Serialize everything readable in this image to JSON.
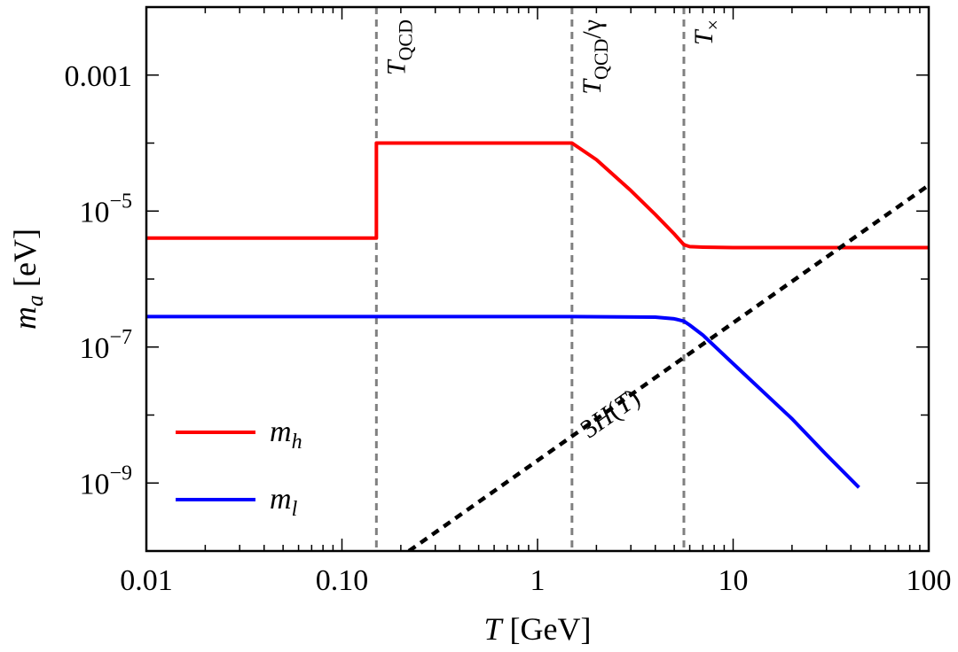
{
  "chart_data": {
    "type": "line",
    "xlabel": {
      "var": "T",
      "unit": " [GeV]"
    },
    "ylabel": {
      "var": "m",
      "sub": "a",
      "unit": " [eV]"
    },
    "x_scale": "log",
    "y_scale": "log",
    "xlim": [
      0.01,
      100
    ],
    "ylim": [
      1e-10,
      0.01
    ],
    "x_ticks": [
      {
        "value": 0.01,
        "label": "0.01"
      },
      {
        "value": 0.1,
        "label": "0.10"
      },
      {
        "value": 1,
        "label": "1"
      },
      {
        "value": 10,
        "label": "10"
      },
      {
        "value": 100,
        "label": "100"
      }
    ],
    "y_ticks": [
      {
        "value": 0.001,
        "base": "0.001",
        "exp": ""
      },
      {
        "value": 1e-05,
        "base": "10",
        "exp": "−5"
      },
      {
        "value": 1e-07,
        "base": "10",
        "exp": "−7"
      },
      {
        "value": 1e-09,
        "base": "10",
        "exp": "−9"
      }
    ],
    "grid": false,
    "legend_position": "bottom-left",
    "vlines": [
      {
        "x": 0.15,
        "label_main": "T",
        "label_sub": "QCD",
        "label_suffix": ""
      },
      {
        "x": 1.5,
        "label_main": "T",
        "label_sub": "QCD",
        "label_suffix": "/γ"
      },
      {
        "x": 5.6,
        "label_main": "T",
        "label_sub": "×",
        "label_suffix": ""
      }
    ],
    "series": [
      {
        "name": "m_h",
        "legend_main": "m",
        "legend_sub": "h",
        "color": "#ff0000",
        "style": "solid",
        "x": [
          0.01,
          0.15,
          0.15,
          1.5,
          2,
          3,
          4,
          5,
          5.6,
          6,
          7,
          10,
          30,
          100
        ],
        "y": [
          4e-06,
          4e-06,
          0.0001,
          0.0001,
          5.7e-05,
          2e-05,
          8.9e-06,
          4.6e-06,
          3.2e-06,
          3e-06,
          2.95e-06,
          2.9e-06,
          2.9e-06,
          2.9e-06
        ]
      },
      {
        "name": "m_l",
        "legend_main": "m",
        "legend_sub": "l",
        "color": "#0000ff",
        "style": "solid",
        "x": [
          0.01,
          0.15,
          1.5,
          4,
          5,
          5.6,
          6,
          7,
          10,
          20,
          30,
          44
        ],
        "y": [
          2.8e-07,
          2.8e-07,
          2.8e-07,
          2.75e-07,
          2.6e-07,
          2.4e-07,
          2.1e-07,
          1.5e-07,
          5.7e-08,
          8.8e-09,
          2.6e-09,
          8.6e-10
        ]
      },
      {
        "name": "3H(T)",
        "label_text": "3H(T)",
        "color": "#000000",
        "style": "dashed",
        "x": [
          0.22,
          100
        ],
        "y": [
          1e-10,
          2.4e-05
        ]
      }
    ]
  }
}
